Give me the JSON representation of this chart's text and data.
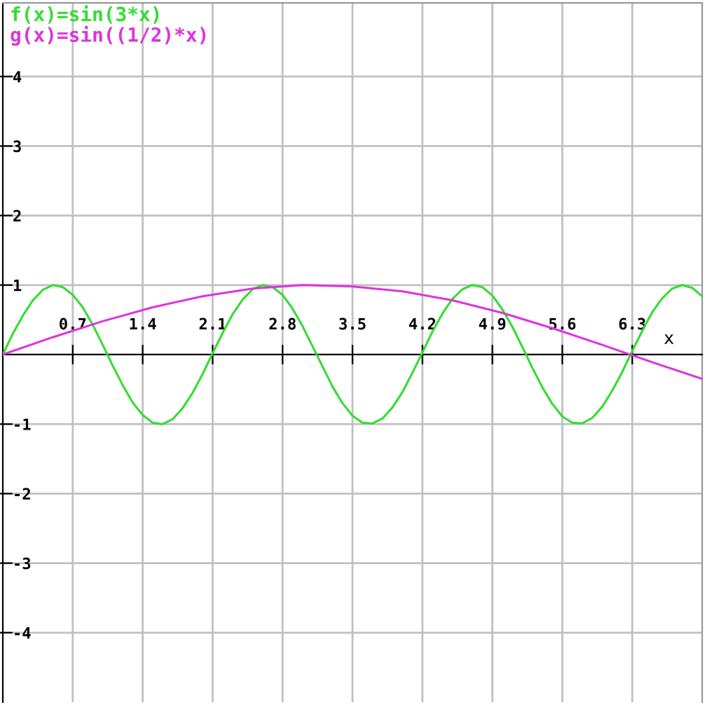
{
  "chart_data": {
    "type": "line",
    "xlabel": "x",
    "legend": "top left",
    "grid": true,
    "marker": "none",
    "line_style": "solid",
    "xlim": [
      0,
      7.0
    ],
    "ylim": [
      -5,
      5.06
    ],
    "xticks": [
      0.7,
      1.4,
      2.1,
      2.8,
      3.5,
      4.2,
      4.9,
      5.6,
      6.3
    ],
    "yticks": [
      -4,
      -3,
      -2,
      -1,
      1,
      2,
      3,
      4
    ],
    "series": [
      {
        "name": "f(x)=sin(3*x)",
        "color": "#33dd33",
        "x": [
          0,
          0.1,
          0.2,
          0.3,
          0.4,
          0.5,
          0.6,
          0.7,
          0.8,
          0.9,
          1.0,
          1.1,
          1.2,
          1.3,
          1.4,
          1.5,
          1.6,
          1.7,
          1.8,
          1.9,
          2.0,
          2.1,
          2.2,
          2.3,
          2.4,
          2.5,
          2.6,
          2.7,
          2.8,
          2.9,
          3.0,
          3.1,
          3.2,
          3.3,
          3.4,
          3.5,
          3.6,
          3.7,
          3.8,
          3.9,
          4.0,
          4.1,
          4.2,
          4.3,
          4.4,
          4.5,
          4.6,
          4.7,
          4.8,
          4.9,
          5.0,
          5.1,
          5.2,
          5.3,
          5.4,
          5.5,
          5.6,
          5.7,
          5.8,
          5.9,
          6.0,
          6.1,
          6.2,
          6.3,
          6.4,
          6.5,
          6.6,
          6.7,
          6.8,
          6.9,
          7.0
        ],
        "values": [
          0,
          0.3,
          0.56,
          0.78,
          0.93,
          1.0,
          0.97,
          0.86,
          0.68,
          0.43,
          0.14,
          -0.16,
          -0.44,
          -0.69,
          -0.87,
          -0.98,
          -1.0,
          -0.93,
          -0.77,
          -0.55,
          -0.28,
          0.02,
          0.31,
          0.58,
          0.79,
          0.94,
          1.0,
          0.97,
          0.86,
          0.66,
          0.41,
          0.12,
          -0.17,
          -0.46,
          -0.7,
          -0.88,
          -0.98,
          -0.99,
          -0.92,
          -0.76,
          -0.54,
          -0.26,
          0.03,
          0.33,
          0.59,
          0.8,
          0.94,
          1.0,
          0.97,
          0.85,
          0.65,
          0.4,
          0.11,
          -0.19,
          -0.47,
          -0.71,
          -0.89,
          -0.98,
          -0.99,
          -0.91,
          -0.75,
          -0.52,
          -0.25,
          0.05,
          0.34,
          0.61,
          0.81,
          0.95,
          1.0,
          0.96,
          0.84
        ]
      },
      {
        "name": "g(x)=sin((1/2)*x)",
        "color": "#dd33dd",
        "x": [
          0,
          0.5,
          1.0,
          1.5,
          2.0,
          2.5,
          3.0,
          3.5,
          4.0,
          4.5,
          5.0,
          5.5,
          6.0,
          6.5,
          7.0
        ],
        "values": [
          0,
          0.25,
          0.48,
          0.68,
          0.84,
          0.95,
          1.0,
          0.98,
          0.91,
          0.78,
          0.6,
          0.38,
          0.14,
          -0.11,
          -0.35
        ]
      }
    ]
  }
}
